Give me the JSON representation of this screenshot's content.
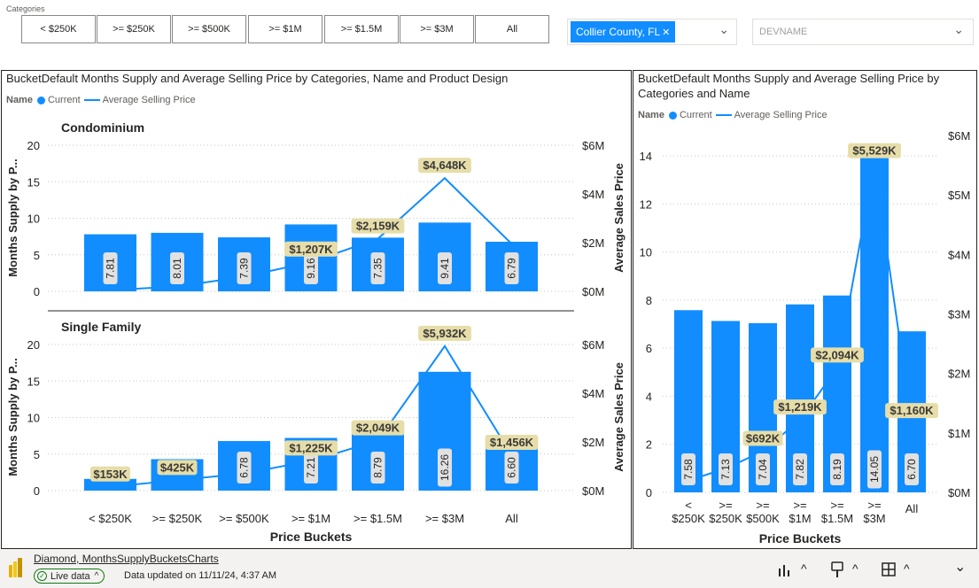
{
  "slicer": {
    "title": "Categories",
    "tiles": [
      "< $250K",
      ">= $250K",
      ">= $500K",
      ">= $1M",
      ">= $1.5M",
      ">= $3M",
      "All"
    ]
  },
  "county_filter": {
    "chip": "Collier County, FL",
    "close_glyph": "✕",
    "chevron": "⌄"
  },
  "devname_filter": {
    "placeholder": "DEVNAME",
    "chevron": "⌄"
  },
  "legend": {
    "label": "Name",
    "current": "Current",
    "avg": "Average Selling Price"
  },
  "colors": {
    "bar": "#118dff",
    "label_bg": "#e6dda8",
    "accent": "#118dff"
  },
  "left_visual": {
    "title": "BucketDefault Months Supply and Average Selling Price by Categories, Name and Product Design",
    "y_left_label": "Months Supply by P...",
    "y_right_label": "Average Sales Price",
    "x_label": "Price Buckets"
  },
  "right_visual": {
    "title_line1": "BucketDefault Months Supply and Average Selling Price by",
    "title_line2": "Categories and Name",
    "x_label": "Price Buckets"
  },
  "chart_data": [
    {
      "type": "bar",
      "title": "Condominium",
      "categories": [
        "< $250K",
        ">= $250K",
        ">= $500K",
        ">= $1M",
        ">= $1.5M",
        ">= $3M",
        "All"
      ],
      "series": [
        {
          "name": "Current",
          "kind": "bar",
          "axis": "left",
          "values": [
            7.81,
            8.01,
            7.39,
            9.16,
            7.35,
            9.41,
            6.79
          ],
          "labels": [
            "7.81",
            "8.01",
            "7.39",
            "9.16",
            "7.35",
            "9.41",
            "6.79"
          ]
        },
        {
          "name": "Average Selling Price",
          "kind": "line",
          "axis": "right",
          "values": [
            0.05,
            0.2,
            0.6,
            1.207,
            2.159,
            4.648,
            1.95
          ],
          "labels": [
            "",
            "",
            "",
            "$1,207K",
            "$2,159K",
            "$4,648K",
            ""
          ]
        }
      ],
      "ylim_left": [
        0,
        20
      ],
      "yticks_left": [
        "0",
        "5",
        "10",
        "15",
        "20"
      ],
      "ylim_right": [
        0,
        6
      ],
      "yticks_right": [
        "$0M",
        "$2M",
        "$4M",
        "$6M"
      ]
    },
    {
      "type": "bar",
      "title": "Single Family",
      "categories": [
        "< $250K",
        ">= $250K",
        ">= $500K",
        ">= $1M",
        ">= $1.5M",
        ">= $3M",
        "All"
      ],
      "series": [
        {
          "name": "Current",
          "kind": "bar",
          "axis": "left",
          "values": [
            1.6,
            4.3,
            6.78,
            7.21,
            8.79,
            16.26,
            6.6
          ],
          "labels": [
            "",
            "",
            "6.78",
            "7.21",
            "8.79",
            "16.26",
            "6.60"
          ]
        },
        {
          "name": "Average Selling Price",
          "kind": "line",
          "axis": "right",
          "values": [
            0.153,
            0.425,
            0.7,
            1.225,
            2.049,
            5.932,
            1.456
          ],
          "labels": [
            "$153K",
            "$425K",
            "",
            "$1,225K",
            "$2,049K",
            "$5,932K",
            "$1,456K"
          ]
        }
      ],
      "ylim_left": [
        0,
        20
      ],
      "yticks_left": [
        "0",
        "5",
        "10",
        "15",
        "20"
      ],
      "ylim_right": [
        0,
        6
      ],
      "yticks_right": [
        "$0M",
        "$2M",
        "$4M",
        "$6M"
      ],
      "xticks": [
        "< $250K",
        ">= $250K",
        ">= $500K",
        ">= $1M",
        ">= $1.5M",
        ">= $3M",
        "All"
      ]
    },
    {
      "type": "bar",
      "title": "",
      "categories": [
        "< $250K",
        ">= $250K",
        ">= $500K",
        ">= $1M",
        ">= $1.5M",
        ">= $3M",
        "All"
      ],
      "series": [
        {
          "name": "Current",
          "kind": "bar",
          "axis": "left",
          "values": [
            7.58,
            7.13,
            7.04,
            7.82,
            8.19,
            14.05,
            6.7
          ],
          "labels": [
            "7.58",
            "7.13",
            "7.04",
            "7.82",
            "8.19",
            "14.05",
            "6.70"
          ]
        },
        {
          "name": "Average Selling Price",
          "kind": "line",
          "axis": "right",
          "values": [
            0.2,
            0.4,
            0.692,
            1.219,
            2.094,
            5.529,
            1.16
          ],
          "labels": [
            "",
            "",
            "$692K",
            "$1,219K",
            "$2,094K",
            "$5,529K",
            "$1,160K"
          ]
        }
      ],
      "ylim_left": [
        0,
        15
      ],
      "yticks_left": [
        "0",
        "2",
        "4",
        "6",
        "8",
        "10",
        "12",
        "14"
      ],
      "ylim_right": [
        0,
        6
      ],
      "yticks_right": [
        "$0M",
        "$1M",
        "$2M",
        "$3M",
        "$4M",
        "$5M",
        "$6M"
      ],
      "xticks": [
        [
          "<",
          "$250K"
        ],
        [
          ">=",
          "$250K"
        ],
        [
          ">=",
          "$500K"
        ],
        [
          ">=",
          "$1M"
        ],
        [
          ">=",
          "$1.5M"
        ],
        [
          ">=",
          "$3M"
        ],
        [
          "All",
          ""
        ]
      ]
    }
  ],
  "footer": {
    "report_name": "Diamond, MonthsSupplyBucketsCharts",
    "live_label": "Live data",
    "live_chevron": "^",
    "updated": "Data updated on 11/11/24, 4:37 AM",
    "chevron_up": "^",
    "chevron_down": "⌄"
  }
}
